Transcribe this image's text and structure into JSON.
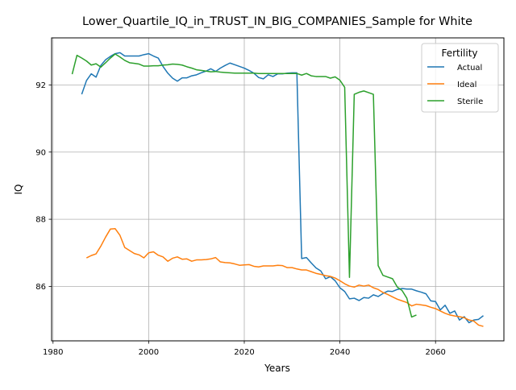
{
  "chart_data": {
    "type": "line",
    "title": "Lower_Quartile_IQ_in_TRUST_IN_BIG_COMPANIES_Sample for White",
    "xlabel": "Years",
    "ylabel": "IQ",
    "xlim": [
      1979.7,
      2074.3
    ],
    "ylim": [
      84.38,
      93.4
    ],
    "xticks": [
      1980,
      2000,
      2020,
      2040,
      2060
    ],
    "yticks": [
      86,
      88,
      90,
      92
    ],
    "grid": true,
    "legend": {
      "title": "Fertility",
      "placement": "top-right"
    },
    "series": [
      {
        "name": "Actual",
        "color": "#1f77b4",
        "x": [
          1986,
          1987,
          1988,
          1989,
          1990,
          1991,
          1992,
          1993,
          1994,
          1995,
          1996,
          1997,
          1998,
          1999,
          2000,
          2001,
          2002,
          2003,
          2004,
          2005,
          2006,
          2007,
          2008,
          2009,
          2010,
          2011,
          2012,
          2013,
          2014,
          2015,
          2016,
          2017,
          2018,
          2019,
          2020,
          2021,
          2022,
          2023,
          2024,
          2025,
          2026,
          2027,
          2028,
          2029,
          2030,
          2031,
          2032,
          2033,
          2034,
          2035,
          2036,
          2037,
          2038,
          2039,
          2040,
          2041,
          2042,
          2043,
          2044,
          2045,
          2046,
          2047,
          2048,
          2049,
          2050,
          2051,
          2052,
          2053,
          2054,
          2055,
          2056,
          2057,
          2058,
          2059,
          2060,
          2061,
          2062,
          2063,
          2064,
          2065,
          2066,
          2067,
          2068,
          2069,
          2070
        ],
        "y": [
          91.72,
          92.13,
          92.33,
          92.23,
          92.58,
          92.75,
          92.85,
          92.93,
          92.96,
          92.86,
          92.86,
          92.86,
          92.86,
          92.9,
          92.93,
          92.86,
          92.8,
          92.55,
          92.35,
          92.2,
          92.11,
          92.21,
          92.21,
          92.27,
          92.3,
          92.36,
          92.41,
          92.48,
          92.4,
          92.5,
          92.58,
          92.65,
          92.6,
          92.55,
          92.5,
          92.43,
          92.35,
          92.22,
          92.18,
          92.3,
          92.25,
          92.33,
          92.33,
          92.35,
          92.36,
          92.36,
          86.83,
          86.86,
          86.7,
          86.55,
          86.46,
          86.23,
          86.29,
          86.17,
          85.96,
          85.85,
          85.63,
          85.65,
          85.58,
          85.67,
          85.65,
          85.75,
          85.7,
          85.79,
          85.86,
          85.85,
          85.91,
          85.94,
          85.92,
          85.92,
          85.87,
          85.83,
          85.78,
          85.57,
          85.55,
          85.3,
          85.44,
          85.2,
          85.27,
          85.0,
          85.1,
          84.92,
          85.0,
          85.02,
          85.13
        ]
      },
      {
        "name": "Ideal",
        "color": "#ff7f0e",
        "x": [
          1987,
          1988,
          1989,
          1990,
          1991,
          1992,
          1993,
          1994,
          1995,
          1996,
          1997,
          1998,
          1999,
          2000,
          2001,
          2002,
          2003,
          2004,
          2005,
          2006,
          2007,
          2008,
          2009,
          2010,
          2011,
          2012,
          2013,
          2014,
          2015,
          2016,
          2017,
          2018,
          2019,
          2020,
          2021,
          2022,
          2023,
          2024,
          2025,
          2026,
          2027,
          2028,
          2029,
          2030,
          2031,
          2032,
          2033,
          2034,
          2035,
          2036,
          2037,
          2038,
          2039,
          2040,
          2041,
          2042,
          2043,
          2044,
          2045,
          2046,
          2047,
          2048,
          2049,
          2050,
          2051,
          2052,
          2053,
          2054,
          2055,
          2056,
          2057,
          2058,
          2059,
          2060,
          2061,
          2062,
          2063,
          2064,
          2065,
          2066,
          2067,
          2068,
          2069,
          2070
        ],
        "y": [
          86.85,
          86.92,
          86.97,
          87.2,
          87.47,
          87.71,
          87.72,
          87.52,
          87.16,
          87.07,
          86.98,
          86.94,
          86.85,
          87.0,
          87.03,
          86.93,
          86.88,
          86.75,
          86.84,
          86.88,
          86.81,
          86.82,
          86.75,
          86.79,
          86.79,
          86.8,
          86.82,
          86.86,
          86.73,
          86.71,
          86.7,
          86.67,
          86.63,
          86.64,
          86.65,
          86.6,
          86.58,
          86.61,
          86.61,
          86.61,
          86.63,
          86.62,
          86.56,
          86.56,
          86.52,
          86.49,
          86.49,
          86.44,
          86.39,
          86.36,
          86.32,
          86.3,
          86.25,
          86.17,
          86.08,
          86.01,
          85.98,
          86.04,
          86.01,
          86.04,
          85.96,
          85.91,
          85.82,
          85.76,
          85.69,
          85.62,
          85.57,
          85.52,
          85.42,
          85.47,
          85.45,
          85.43,
          85.38,
          85.34,
          85.27,
          85.2,
          85.15,
          85.12,
          85.1,
          85.07,
          85.0,
          84.97,
          84.85,
          84.81
        ]
      },
      {
        "name": "Sterile",
        "color": "#2ca02c",
        "x": [
          1984,
          1985,
          1986,
          1987,
          1988,
          1989,
          1990,
          1991,
          1992,
          1993,
          1994,
          1995,
          1996,
          1997,
          1998,
          1999,
          2000,
          2001,
          2002,
          2003,
          2004,
          2005,
          2006,
          2007,
          2008,
          2009,
          2010,
          2011,
          2012,
          2013,
          2014,
          2015,
          2016,
          2017,
          2018,
          2019,
          2020,
          2021,
          2022,
          2023,
          2024,
          2025,
          2026,
          2027,
          2028,
          2029,
          2030,
          2031,
          2032,
          2033,
          2034,
          2035,
          2036,
          2037,
          2038,
          2039,
          2040,
          2041,
          2042,
          2043,
          2044,
          2045,
          2046,
          2047,
          2048,
          2049,
          2050,
          2051,
          2052,
          2053,
          2054,
          2055,
          2056
        ],
        "y": [
          92.32,
          92.88,
          92.8,
          92.71,
          92.59,
          92.63,
          92.53,
          92.66,
          92.8,
          92.92,
          92.83,
          92.73,
          92.66,
          92.64,
          92.62,
          92.56,
          92.56,
          92.57,
          92.57,
          92.59,
          92.6,
          92.62,
          92.61,
          92.59,
          92.54,
          92.5,
          92.45,
          92.43,
          92.41,
          92.39,
          92.4,
          92.38,
          92.37,
          92.36,
          92.35,
          92.35,
          92.35,
          92.35,
          92.35,
          92.34,
          92.34,
          92.34,
          92.34,
          92.34,
          92.34,
          92.34,
          92.34,
          92.34,
          92.29,
          92.34,
          92.27,
          92.25,
          92.25,
          92.25,
          92.2,
          92.24,
          92.14,
          91.93,
          86.27,
          91.72,
          91.78,
          91.82,
          91.77,
          91.72,
          86.62,
          86.33,
          86.28,
          86.23,
          85.98,
          85.88,
          85.65,
          85.09,
          85.15
        ]
      }
    ]
  }
}
